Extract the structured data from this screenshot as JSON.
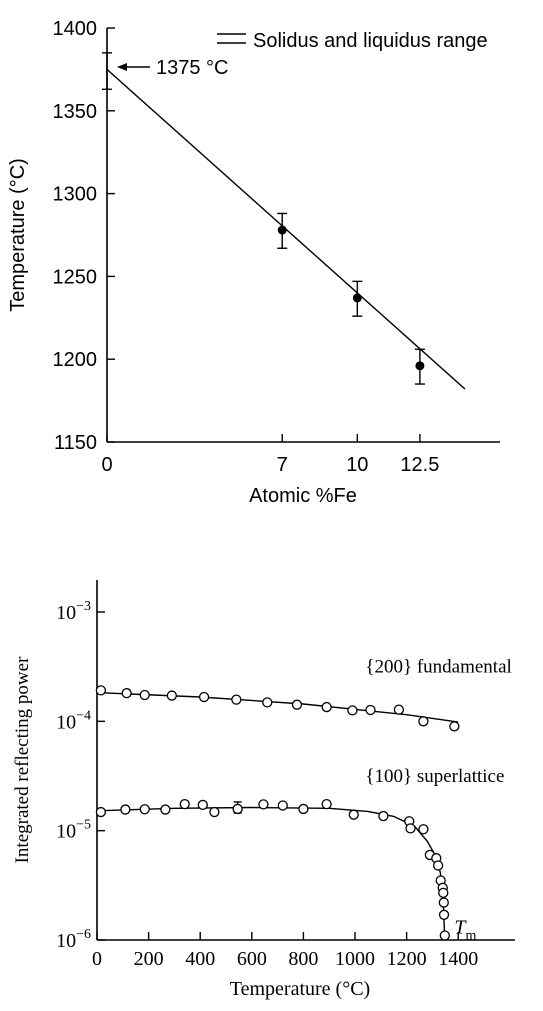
{
  "chart_data": [
    {
      "type": "line",
      "title": "",
      "xlabel": "Atomic %Fe",
      "ylabel": "Temperature (°C)",
      "xlim": [
        0,
        15.7
      ],
      "ylim": [
        1150,
        1400
      ],
      "x_ticks": [
        0,
        7,
        10,
        12.5
      ],
      "x_tick_labels": [
        "0",
        "7",
        "10",
        "12.5"
      ],
      "y_ticks": [
        1150,
        1200,
        1250,
        1300,
        1350,
        1400
      ],
      "y_tick_labels": [
        "1150",
        "1200",
        "1250",
        "1300",
        "1350",
        "1400"
      ],
      "legend": {
        "position": "top-right",
        "label": "Solidus and liquidus range"
      },
      "annotation": "1375 °C",
      "annotation_value": 1375,
      "fit_line": {
        "x": [
          0,
          14.3
        ],
        "y": [
          1375,
          1182
        ]
      },
      "series": [
        {
          "points": [
            {
              "x": 0,
              "y": 1375,
              "err_low": 1363,
              "err_high": 1385,
              "marker": false
            },
            {
              "x": 7,
              "y": 1278,
              "err_low": 1267,
              "err_high": 1288,
              "marker": true
            },
            {
              "x": 10,
              "y": 1237,
              "err_low": 1226,
              "err_high": 1247,
              "marker": true
            },
            {
              "x": 12.5,
              "y": 1196,
              "err_low": 1185,
              "err_high": 1206,
              "marker": true
            }
          ]
        }
      ],
      "grid": false
    },
    {
      "type": "scatter",
      "title": "",
      "xlabel": "Temperature (°C)",
      "ylabel": "Integrated reflecting power",
      "y_scale": "log",
      "xlim": [
        0,
        1620
      ],
      "ylim": [
        1e-06,
        0.001
      ],
      "x_ticks": [
        0,
        200,
        400,
        600,
        800,
        1000,
        1200,
        1400
      ],
      "x_tick_labels": [
        "0",
        "200",
        "400",
        "600",
        "800",
        "1000",
        "1200",
        "1400"
      ],
      "y_ticks": [
        1e-06,
        1e-05,
        0.0001,
        0.001
      ],
      "y_tick_labels": [
        {
          "base": "10",
          "exp": "−6"
        },
        {
          "base": "10",
          "exp": "−5"
        },
        {
          "base": "10",
          "exp": "−4"
        },
        {
          "base": "10",
          "exp": "−3"
        }
      ],
      "series": [
        {
          "name": "{200} fundamental",
          "points": [
            [
              15,
              0.000192
            ],
            [
              115,
              0.000181
            ],
            [
              185,
              0.000174
            ],
            [
              290,
              0.000172
            ],
            [
              415,
              0.000167
            ],
            [
              540,
              0.000158
            ],
            [
              660,
              0.000149
            ],
            [
              775,
              0.000142
            ],
            [
              890,
              0.000135
            ],
            [
              990,
              0.000126
            ],
            [
              1060,
              0.000127
            ],
            [
              1170,
              0.000128
            ],
            [
              1265,
              0.0001
            ],
            [
              1385,
              9e-05
            ]
          ],
          "fit": [
            [
              0,
              0.000183
            ],
            [
              400,
              0.000167
            ],
            [
              800,
              0.000144
            ],
            [
              1200,
              0.000115
            ],
            [
              1400,
              9.85e-05
            ]
          ]
        },
        {
          "name": "{100} superlattice",
          "points": [
            [
              15,
              1.48e-05
            ],
            [
              110,
              1.56e-05
            ],
            [
              185,
              1.57e-05
            ],
            [
              265,
              1.56e-05
            ],
            [
              340,
              1.75e-05
            ],
            [
              410,
              1.72e-05
            ],
            [
              455,
              1.48e-05
            ],
            [
              545,
              1.58e-05
            ],
            [
              645,
              1.74e-05
            ],
            [
              720,
              1.7e-05
            ],
            [
              800,
              1.58e-05
            ],
            [
              890,
              1.75e-05
            ],
            [
              995,
              1.4e-05
            ],
            [
              1110,
              1.36e-05
            ],
            [
              1210,
              1.22e-05
            ],
            [
              1215,
              1.05e-05
            ],
            [
              1265,
              1.03e-05
            ],
            [
              1290,
              6e-06
            ],
            [
              1315,
              5.6e-06
            ],
            [
              1322,
              4.8e-06
            ],
            [
              1332,
              3.5e-06
            ],
            [
              1340,
              3e-06
            ],
            [
              1342,
              2.7e-06
            ],
            [
              1344,
              2.2e-06
            ],
            [
              1345,
              1.7e-06
            ],
            [
              1348,
              1.1e-06
            ]
          ],
          "error_bar": {
            "x": 545,
            "low": 1.45e-05,
            "high": 1.83e-05
          },
          "fit": [
            [
              0,
              1.52e-05
            ],
            [
              300,
              1.6e-05
            ],
            [
              600,
              1.63e-05
            ],
            [
              900,
              1.6e-05
            ],
            [
              1050,
              1.5e-05
            ],
            [
              1150,
              1.35e-05
            ],
            [
              1230,
              1.1e-05
            ],
            [
              1280,
              8e-06
            ],
            [
              1310,
              6e-06
            ],
            [
              1330,
              4.2e-06
            ],
            [
              1340,
              2.8e-06
            ],
            [
              1348,
              1e-06
            ]
          ]
        }
      ],
      "annotations": [
        {
          "text": "T",
          "sub": "m",
          "x": 1385,
          "y": 1.15e-06
        }
      ],
      "grid": false
    }
  ]
}
